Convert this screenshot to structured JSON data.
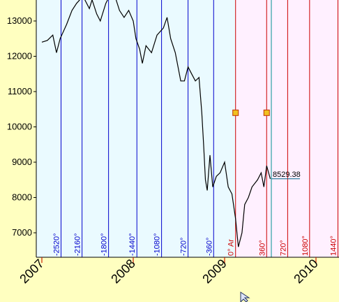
{
  "chart_data": {
    "type": "line",
    "title": "",
    "xlabel": "",
    "ylabel": "",
    "ylim": [
      6300,
      13600
    ],
    "xlim": [
      2006.97,
      2010.35
    ],
    "y_ticks": [
      {
        "value": 7000,
        "label": "7000"
      },
      {
        "value": 8000,
        "label": "8000"
      },
      {
        "value": 9000,
        "label": "9000"
      },
      {
        "value": 10000,
        "label": "10000"
      },
      {
        "value": 11000,
        "label": "11000"
      },
      {
        "value": 12000,
        "label": "12000"
      },
      {
        "value": 13000,
        "label": "13000"
      }
    ],
    "x_ticks": [
      {
        "value": 2007.0,
        "label": "2007"
      },
      {
        "value": 2008.0,
        "label": "2008"
      },
      {
        "value": 2009.0,
        "label": "2009"
      },
      {
        "value": 2010.0,
        "label": "2010"
      }
    ],
    "series": [
      {
        "color": "#000000",
        "points": [
          [
            2007.0,
            12400
          ],
          [
            2007.06,
            12450
          ],
          [
            2007.12,
            12600
          ],
          [
            2007.16,
            12100
          ],
          [
            2007.2,
            12500
          ],
          [
            2007.27,
            12900
          ],
          [
            2007.33,
            13300
          ],
          [
            2007.38,
            13500
          ],
          [
            2007.45,
            13700
          ],
          [
            2007.52,
            13350
          ],
          [
            2007.55,
            13600
          ],
          [
            2007.6,
            13200
          ],
          [
            2007.64,
            13000
          ],
          [
            2007.7,
            13500
          ],
          [
            2007.76,
            13800
          ],
          [
            2007.8,
            13700
          ],
          [
            2007.85,
            13300
          ],
          [
            2007.9,
            13100
          ],
          [
            2007.95,
            13300
          ],
          [
            2008.0,
            13000
          ],
          [
            2008.03,
            12500
          ],
          [
            2008.07,
            12200
          ],
          [
            2008.1,
            11800
          ],
          [
            2008.14,
            12300
          ],
          [
            2008.2,
            12100
          ],
          [
            2008.26,
            12600
          ],
          [
            2008.33,
            12800
          ],
          [
            2008.37,
            13100
          ],
          [
            2008.41,
            12500
          ],
          [
            2008.46,
            12100
          ],
          [
            2008.52,
            11300
          ],
          [
            2008.56,
            11300
          ],
          [
            2008.6,
            11700
          ],
          [
            2008.64,
            11500
          ],
          [
            2008.68,
            11300
          ],
          [
            2008.72,
            11400
          ],
          [
            2008.75,
            10400
          ],
          [
            2008.77,
            9500
          ],
          [
            2008.79,
            8500
          ],
          [
            2008.81,
            8200
          ],
          [
            2008.84,
            9200
          ],
          [
            2008.87,
            8300
          ],
          [
            2008.91,
            8600
          ],
          [
            2008.95,
            8700
          ],
          [
            2009.0,
            9000
          ],
          [
            2009.04,
            8300
          ],
          [
            2009.08,
            8100
          ],
          [
            2009.12,
            7400
          ],
          [
            2009.15,
            6600
          ],
          [
            2009.19,
            7000
          ],
          [
            2009.22,
            7800
          ],
          [
            2009.26,
            8000
          ],
          [
            2009.3,
            8300
          ],
          [
            2009.36,
            8500
          ],
          [
            2009.4,
            8700
          ],
          [
            2009.43,
            8300
          ],
          [
            2009.46,
            8900
          ],
          [
            2009.5,
            8529
          ]
        ]
      }
    ],
    "last_value": {
      "value": 8529.38,
      "label": "8529.38"
    },
    "vertical_lines": [
      {
        "x": 2007.21,
        "label": "-2520°",
        "color": "#0000cc"
      },
      {
        "x": 2007.44,
        "label": "-2160°",
        "color": "#0000cc"
      },
      {
        "x": 2007.73,
        "label": "-1800°",
        "color": "#0000cc"
      },
      {
        "x": 2008.04,
        "label": "-1440°",
        "color": "#0000cc"
      },
      {
        "x": 2008.31,
        "label": "-1080°",
        "color": "#0000cc"
      },
      {
        "x": 2008.6,
        "label": "-720°",
        "color": "#0000cc"
      },
      {
        "x": 2008.88,
        "label": "-360°",
        "color": "#0000cc"
      },
      {
        "x": 2009.12,
        "label": "0° Ar",
        "color": "#cc0000"
      },
      {
        "x": 2009.46,
        "label": "360°",
        "color": "#cc0000"
      },
      {
        "x": 2009.69,
        "label": "720°",
        "color": "#cc0000"
      },
      {
        "x": 2009.93,
        "label": "1080°",
        "color": "#cc0000"
      },
      {
        "x": 2010.24,
        "label": "1440°",
        "color": "#cc0000"
      }
    ],
    "markers": [
      {
        "x": 2009.12,
        "y": 10400
      },
      {
        "x": 2009.46,
        "y": 10400
      }
    ],
    "colors": {
      "page_background": "#ffffc0",
      "past_region": "#eafaff",
      "future_region": "#fff0ff",
      "marker_fill": "#f0c020",
      "marker_stroke": "#c03000",
      "now_line": "#009090",
      "last_value_line": "#006688"
    },
    "grid": false
  }
}
